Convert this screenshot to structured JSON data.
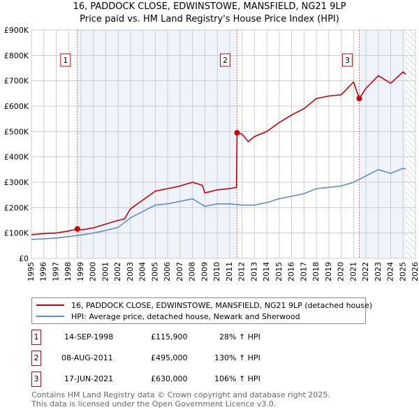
{
  "chart_data": {
    "type": "line",
    "title": "16, PADDOCK CLOSE, EDWINSTOWE, MANSFIELD, NG21 9LP",
    "subtitle": "Price paid vs. HM Land Registry's House Price Index (HPI)",
    "xlim": [
      1995,
      2026
    ],
    "ylim": [
      0,
      900000
    ],
    "x_ticks": [
      "1995",
      "1996",
      "1997",
      "1998",
      "1999",
      "2000",
      "2001",
      "2002",
      "2003",
      "2004",
      "2005",
      "2006",
      "2007",
      "2008",
      "2009",
      "2010",
      "2011",
      "2012",
      "2013",
      "2014",
      "2015",
      "2016",
      "2017",
      "2018",
      "2019",
      "2020",
      "2021",
      "2022",
      "2023",
      "2024",
      "2025",
      "2026"
    ],
    "y_ticks": [
      {
        "v": 0,
        "label": "£0"
      },
      {
        "v": 100000,
        "label": "£100K"
      },
      {
        "v": 200000,
        "label": "£200K"
      },
      {
        "v": 300000,
        "label": "£300K"
      },
      {
        "v": 400000,
        "label": "£400K"
      },
      {
        "v": 500000,
        "label": "£500K"
      },
      {
        "v": 600000,
        "label": "£600K"
      },
      {
        "v": 700000,
        "label": "£700K"
      },
      {
        "v": 800000,
        "label": "£800K"
      },
      {
        "v": 900000,
        "label": "£900K"
      }
    ],
    "grid": true,
    "shaded_periods": [
      [
        1998.71,
        2011.6
      ],
      [
        2021.46,
        2025.2
      ]
    ],
    "forecast_hatch_from": 2025.2,
    "series": [
      {
        "name": "16, PADDOCK CLOSE, EDWINSTOWE, MANSFIELD, NG21 9LP (detached house)",
        "color": "#cc0000",
        "x": [
          1995,
          1996,
          1997,
          1998,
          1998.71,
          1999,
          2000,
          2001,
          2002,
          2002.5,
          2003,
          2004,
          2005,
          2006,
          2007,
          2008,
          2008.8,
          2009,
          2010,
          2011,
          2011.55,
          2011.6,
          2012,
          2012.5,
          2013,
          2014,
          2015,
          2016,
          2017,
          2018,
          2019,
          2020,
          2021,
          2021.46,
          2022,
          2023,
          2024,
          2025,
          2025.2
        ],
        "y": [
          93000,
          98000,
          100000,
          108000,
          115900,
          112000,
          120000,
          135000,
          150000,
          155000,
          195000,
          230000,
          265000,
          275000,
          285000,
          300000,
          288000,
          258000,
          270000,
          275000,
          280000,
          495000,
          490000,
          460000,
          480000,
          500000,
          535000,
          565000,
          590000,
          630000,
          640000,
          645000,
          695000,
          630000,
          670000,
          720000,
          690000,
          735000,
          725000
        ]
      },
      {
        "name": "HPI: Average price, detached house, Newark and Sherwood",
        "color": "#5b8bd0",
        "x": [
          1995,
          1996,
          1997,
          1998,
          1999,
          2000,
          2001,
          2002,
          2003,
          2004,
          2005,
          2006,
          2007,
          2008,
          2009,
          2010,
          2011,
          2012,
          2013,
          2014,
          2015,
          2016,
          2017,
          2018,
          2019,
          2020,
          2021,
          2022,
          2023,
          2024,
          2025,
          2025.2
        ],
        "y": [
          75000,
          77000,
          80000,
          86000,
          92000,
          100000,
          110000,
          122000,
          160000,
          185000,
          210000,
          215000,
          225000,
          235000,
          205000,
          215000,
          215000,
          210000,
          210000,
          220000,
          235000,
          245000,
          255000,
          275000,
          280000,
          285000,
          300000,
          325000,
          350000,
          335000,
          355000,
          352000
        ]
      }
    ],
    "sales": [
      {
        "num": "1",
        "x": 1998.71,
        "y": 115900,
        "date": "14-SEP-1998",
        "price": "£115,900",
        "hpi": "28% ↑ HPI"
      },
      {
        "num": "2",
        "x": 2011.6,
        "y": 495000,
        "date": "08-AUG-2011",
        "price": "£495,000",
        "hpi": "130% ↑ HPI"
      },
      {
        "num": "3",
        "x": 2021.46,
        "y": 630000,
        "date": "17-JUN-2021",
        "price": "£630,000",
        "hpi": "106% ↑ HPI"
      }
    ]
  },
  "footer": {
    "line1": "Contains HM Land Registry data © Crown copyright and database right 2025.",
    "line2": "This data is licensed under the Open Government Licence v3.0."
  }
}
